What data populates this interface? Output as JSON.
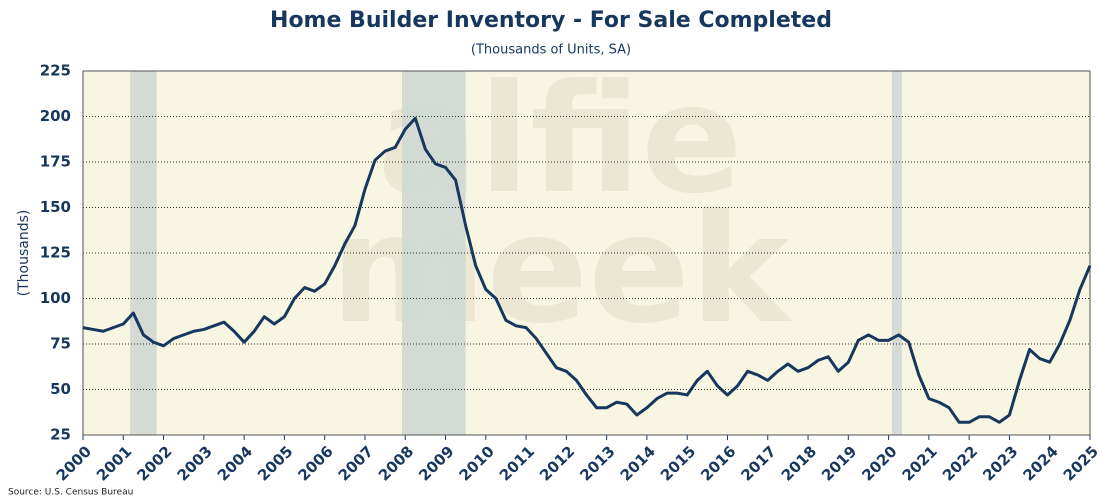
{
  "chart_data": {
    "type": "line",
    "title": "Home Builder Inventory - For Sale Completed",
    "subtitle": "(Thousands of Units, SA)",
    "y_label": "(Thousands)",
    "source": "Source: U.S. Census Bureau",
    "watermark": [
      "alfie",
      "meek"
    ],
    "x": [
      2000,
      2000.25,
      2000.5,
      2000.75,
      2001,
      2001.25,
      2001.5,
      2001.75,
      2002,
      2002.25,
      2002.5,
      2002.75,
      2003,
      2003.25,
      2003.5,
      2003.75,
      2004,
      2004.25,
      2004.5,
      2004.75,
      2005,
      2005.25,
      2005.5,
      2005.75,
      2006,
      2006.25,
      2006.5,
      2006.75,
      2007,
      2007.25,
      2007.5,
      2007.75,
      2008,
      2008.25,
      2008.5,
      2008.75,
      2009,
      2009.25,
      2009.5,
      2009.75,
      2010,
      2010.25,
      2010.5,
      2010.75,
      2011,
      2011.25,
      2011.5,
      2011.75,
      2012,
      2012.25,
      2012.5,
      2012.75,
      2013,
      2013.25,
      2013.5,
      2013.75,
      2014,
      2014.25,
      2014.5,
      2014.75,
      2015,
      2015.25,
      2015.5,
      2015.75,
      2016,
      2016.25,
      2016.5,
      2016.75,
      2017,
      2017.25,
      2017.5,
      2017.75,
      2018,
      2018.25,
      2018.5,
      2018.75,
      2019,
      2019.25,
      2019.5,
      2019.75,
      2020,
      2020.25,
      2020.5,
      2020.75,
      2021,
      2021.25,
      2021.5,
      2021.75,
      2022,
      2022.25,
      2022.5,
      2022.75,
      2023,
      2023.25,
      2023.5,
      2023.75,
      2024,
      2024.25,
      2024.5,
      2024.75,
      2025
    ],
    "series": [
      {
        "name": "For Sale Completed",
        "color": "#17375e",
        "values": [
          84,
          83,
          82,
          84,
          86,
          92,
          80,
          76,
          74,
          78,
          80,
          82,
          83,
          85,
          87,
          82,
          76,
          82,
          90,
          86,
          90,
          100,
          106,
          104,
          108,
          118,
          130,
          140,
          160,
          176,
          181,
          183,
          193,
          199,
          182,
          174,
          172,
          165,
          140,
          118,
          105,
          100,
          88,
          85,
          84,
          78,
          70,
          62,
          60,
          55,
          47,
          40,
          40,
          43,
          42,
          36,
          40,
          45,
          48,
          48,
          47,
          55,
          60,
          52,
          47,
          52,
          60,
          58,
          55,
          60,
          64,
          60,
          62,
          66,
          68,
          60,
          65,
          77,
          80,
          77,
          77,
          80,
          76,
          58,
          45,
          43,
          40,
          32,
          32,
          35,
          35,
          32,
          36,
          55,
          72,
          67,
          65,
          75,
          88,
          105,
          118
        ]
      }
    ],
    "shaded_periods": [
      [
        2001.17,
        2001.83
      ],
      [
        2007.92,
        2009.5
      ],
      [
        2020.08,
        2020.33
      ]
    ],
    "shade_color": "#cfd8d4",
    "background": "#f8f5e2",
    "xlim": [
      2000,
      2025
    ],
    "xticks": [
      2000,
      2001,
      2002,
      2003,
      2004,
      2005,
      2006,
      2007,
      2008,
      2009,
      2010,
      2011,
      2012,
      2013,
      2014,
      2015,
      2016,
      2017,
      2018,
      2019,
      2020,
      2021,
      2022,
      2023,
      2024,
      2025
    ],
    "ylim": [
      25,
      225
    ],
    "yticks": [
      25,
      50,
      75,
      100,
      125,
      150,
      175,
      200,
      225
    ],
    "grid": true
  }
}
